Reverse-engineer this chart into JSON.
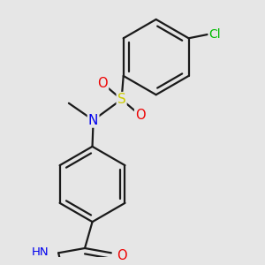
{
  "bg_color": "#e6e6e6",
  "bond_color": "#1a1a1a",
  "atom_colors": {
    "N": "#0000ee",
    "O": "#ee0000",
    "S": "#cccc00",
    "Cl": "#00bb00",
    "H": "#444444",
    "C": "#1a1a1a"
  },
  "bond_width": 1.6,
  "font_size_atom": 10.5,
  "font_size_small": 9.5
}
